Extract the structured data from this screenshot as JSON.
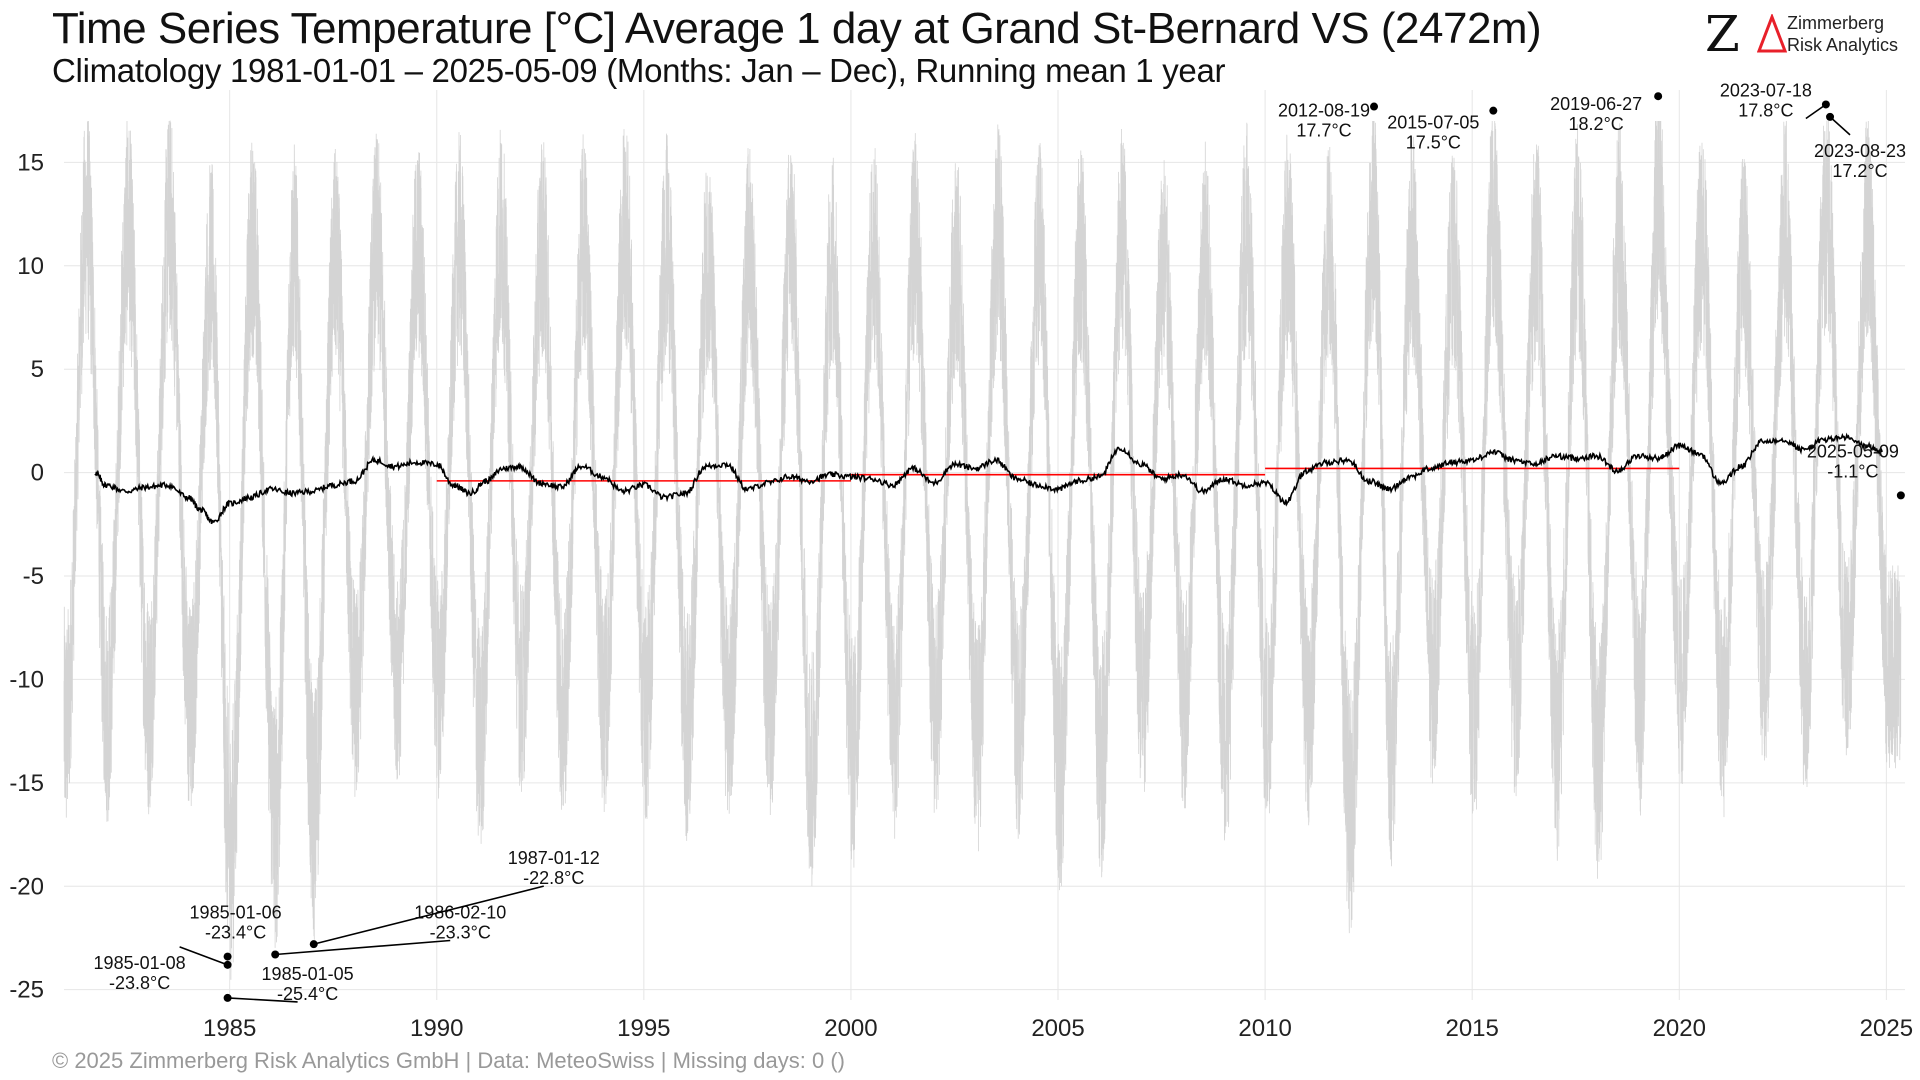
{
  "header": {
    "title": "Time Series Temperature [°C] Average 1 day at Grand St-Bernard  VS (2472m)",
    "subtitle": "Climatology 1981-01-01 – 2025-05-09 (Months: Jan – Dec), Running mean 1 year"
  },
  "logo": {
    "mark": "ZΔ",
    "line1": "Zimmerberg",
    "line2": "Risk Analytics",
    "accent_color": "#e8202a"
  },
  "footer": {
    "text": "©  2025 Zimmerberg Risk Analytics GmbH | Data: MeteoSwiss | Missing days: 0 ()"
  },
  "chart_data": {
    "type": "line",
    "title": "Time Series Temperature [°C] Average 1 day at Grand St-Bernard  VS (2472m)",
    "subtitle": "Climatology 1981-01-01 – 2025-05-09 (Months: Jan – Dec), Running mean 1 year",
    "xlabel": "",
    "ylabel": "",
    "xlim": [
      1981.0,
      2025.45
    ],
    "ylim": [
      -25.5,
      18.5
    ],
    "x_ticks": [
      1985,
      1990,
      1995,
      2000,
      2005,
      2010,
      2015,
      2020,
      2025
    ],
    "y_ticks": [
      15,
      10,
      5,
      0,
      -5,
      -10,
      -15,
      -20,
      -25
    ],
    "grid": true,
    "colors": {
      "daily": "#d4d4d4",
      "running_mean": "#000000",
      "decade_mean": "#ff0000",
      "grid": "#e6e6e6"
    },
    "series": [
      {
        "role": "daily",
        "seasonal_mean_c": -0.4,
        "seasonal_amplitude_c": 8.5,
        "summer_peaks": [
          [
            1981.55,
            17.0
          ],
          [
            1982.55,
            16.5
          ],
          [
            1983.55,
            17.0
          ],
          [
            1984.55,
            14.0
          ],
          [
            1985.55,
            15.5
          ],
          [
            1986.55,
            15.0
          ],
          [
            1987.55,
            14.5
          ],
          [
            1988.55,
            15.5
          ],
          [
            1989.55,
            15.0
          ],
          [
            1990.55,
            15.5
          ],
          [
            1991.55,
            16.0
          ],
          [
            1992.55,
            15.5
          ],
          [
            1993.55,
            15.5
          ],
          [
            1994.55,
            16.5
          ],
          [
            1995.55,
            15.5
          ],
          [
            1996.55,
            14.5
          ],
          [
            1997.55,
            15.0
          ],
          [
            1998.55,
            15.5
          ],
          [
            1999.55,
            14.5
          ],
          [
            2000.55,
            15.0
          ],
          [
            2001.55,
            15.5
          ],
          [
            2002.55,
            14.5
          ],
          [
            2003.55,
            16.0
          ],
          [
            2004.55,
            15.0
          ],
          [
            2005.55,
            15.0
          ],
          [
            2006.55,
            16.0
          ],
          [
            2007.55,
            14.5
          ],
          [
            2008.55,
            15.0
          ],
          [
            2009.55,
            16.0
          ],
          [
            2010.55,
            15.5
          ],
          [
            2011.55,
            15.5
          ],
          [
            2012.62,
            17.7
          ],
          [
            2013.55,
            15.5
          ],
          [
            2014.55,
            14.5
          ],
          [
            2015.51,
            17.5
          ],
          [
            2016.55,
            15.5
          ],
          [
            2017.55,
            16.0
          ],
          [
            2018.55,
            16.0
          ],
          [
            2019.49,
            18.2
          ],
          [
            2020.55,
            16.0
          ],
          [
            2021.55,
            14.5
          ],
          [
            2022.55,
            16.5
          ],
          [
            2023.55,
            17.8
          ],
          [
            2024.55,
            16.5
          ]
        ],
        "winter_troughs": [
          [
            1981.05,
            -17.0
          ],
          [
            1982.05,
            -16.0
          ],
          [
            1983.05,
            -15.5
          ],
          [
            1984.05,
            -16.0
          ],
          [
            1985.02,
            -25.4
          ],
          [
            1986.11,
            -23.3
          ],
          [
            1987.03,
            -22.8
          ],
          [
            1988.05,
            -15.0
          ],
          [
            1989.05,
            -14.0
          ],
          [
            1990.05,
            -14.5
          ],
          [
            1991.05,
            -18.0
          ],
          [
            1992.05,
            -14.5
          ],
          [
            1993.05,
            -16.0
          ],
          [
            1994.05,
            -15.5
          ],
          [
            1995.05,
            -16.0
          ],
          [
            1996.05,
            -17.0
          ],
          [
            1997.05,
            -16.5
          ],
          [
            1998.05,
            -16.0
          ],
          [
            1999.05,
            -20.0
          ],
          [
            2000.05,
            -19.0
          ],
          [
            2001.05,
            -17.0
          ],
          [
            2002.05,
            -16.0
          ],
          [
            2003.05,
            -18.0
          ],
          [
            2004.05,
            -17.0
          ],
          [
            2005.05,
            -20.0
          ],
          [
            2006.05,
            -19.0
          ],
          [
            2007.05,
            -15.0
          ],
          [
            2008.05,
            -15.5
          ],
          [
            2009.05,
            -17.5
          ],
          [
            2010.05,
            -16.5
          ],
          [
            2011.05,
            -16.0
          ],
          [
            2012.05,
            -22.5
          ],
          [
            2013.05,
            -18.5
          ],
          [
            2014.05,
            -14.0
          ],
          [
            2015.05,
            -16.5
          ],
          [
            2016.05,
            -14.5
          ],
          [
            2017.05,
            -18.0
          ],
          [
            2018.05,
            -19.5
          ],
          [
            2019.05,
            -15.5
          ],
          [
            2020.05,
            -14.0
          ],
          [
            2021.05,
            -16.0
          ],
          [
            2022.05,
            -13.5
          ],
          [
            2023.05,
            -15.0
          ],
          [
            2024.05,
            -13.0
          ],
          [
            2025.05,
            -13.0
          ]
        ]
      },
      {
        "role": "running_mean",
        "x": [
          1981.75,
          1982.0,
          1982.5,
          1983.0,
          1983.5,
          1984.0,
          1984.3,
          1984.6,
          1985.0,
          1985.5,
          1986.0,
          1986.5,
          1987.0,
          1987.5,
          1988.0,
          1988.5,
          1989.0,
          1989.5,
          1990.0,
          1990.4,
          1990.8,
          1991.2,
          1991.6,
          1992.0,
          1992.5,
          1993.0,
          1993.5,
          1994.0,
          1994.5,
          1995.0,
          1995.5,
          1996.0,
          1996.5,
          1997.0,
          1997.5,
          1998.0,
          1998.5,
          1999.0,
          1999.5,
          2000.0,
          2000.5,
          2001.0,
          2001.5,
          2002.0,
          2002.5,
          2003.0,
          2003.5,
          2004.0,
          2004.5,
          2005.0,
          2005.5,
          2006.0,
          2006.5,
          2007.0,
          2007.5,
          2008.0,
          2008.5,
          2009.0,
          2009.5,
          2010.0,
          2010.5,
          2011.0,
          2011.5,
          2012.0,
          2012.5,
          2013.0,
          2013.5,
          2014.0,
          2014.5,
          2015.0,
          2015.5,
          2016.0,
          2016.5,
          2017.0,
          2017.5,
          2018.0,
          2018.5,
          2019.0,
          2019.5,
          2020.0,
          2020.5,
          2021.0,
          2021.5,
          2022.0,
          2022.5,
          2023.0,
          2023.5,
          2024.0,
          2024.5,
          2024.9
        ],
        "values": [
          0.0,
          -0.6,
          -0.9,
          -0.7,
          -0.6,
          -1.2,
          -1.8,
          -2.4,
          -1.5,
          -1.2,
          -0.8,
          -1.0,
          -0.9,
          -0.6,
          -0.4,
          0.6,
          0.3,
          0.5,
          0.4,
          -0.6,
          -1.0,
          -0.4,
          0.2,
          0.3,
          -0.5,
          -0.7,
          0.3,
          -0.2,
          -0.9,
          -0.6,
          -1.2,
          -1.0,
          0.3,
          0.4,
          -0.8,
          -0.5,
          -0.2,
          -0.4,
          -0.1,
          -0.2,
          -0.3,
          -0.6,
          0.2,
          -0.5,
          0.4,
          0.2,
          0.6,
          -0.3,
          -0.6,
          -0.8,
          -0.4,
          -0.2,
          1.2,
          0.4,
          -0.3,
          -0.1,
          -0.9,
          -0.3,
          -0.6,
          -0.5,
          -1.4,
          0.1,
          0.5,
          0.6,
          -0.4,
          -0.8,
          -0.2,
          0.2,
          0.5,
          0.6,
          1.0,
          0.6,
          0.4,
          0.8,
          0.7,
          0.8,
          0.1,
          0.8,
          0.7,
          1.3,
          0.9,
          -0.5,
          0.3,
          1.5,
          1.6,
          1.1,
          1.6,
          1.7,
          1.3,
          1.0
        ]
      },
      {
        "role": "decade_mean",
        "segments": [
          {
            "x": [
              1990,
              2000
            ],
            "value": -0.4
          },
          {
            "x": [
              2000,
              2010
            ],
            "value": -0.1
          },
          {
            "x": [
              2010,
              2020
            ],
            "value": 0.2
          }
        ]
      }
    ],
    "final_point": {
      "x": 2025.35,
      "value": -1.1,
      "label": "2025-05-09",
      "value_label": "-1.1°C"
    },
    "annotations": [
      {
        "date": "2012-08-19",
        "value_label": "17.7°C",
        "x": 2012.63,
        "value": 17.7,
        "label_pos": "left-below"
      },
      {
        "date": "2015-07-05",
        "value_label": "17.5°C",
        "x": 2015.51,
        "value": 17.5,
        "label_pos": "left-below"
      },
      {
        "date": "2019-06-27",
        "value_label": "18.2°C",
        "x": 2019.49,
        "value": 18.2,
        "label_pos": "left-below"
      },
      {
        "date": "2023-07-18",
        "value_label": "17.8°C",
        "x": 2023.54,
        "value": 17.8,
        "label_pos": "left-leader"
      },
      {
        "date": "2023-08-23",
        "value_label": "17.2°C",
        "x": 2023.64,
        "value": 17.2,
        "label_pos": "below-leader"
      },
      {
        "date": "1985-01-06",
        "value_label": "-23.4°C",
        "x": 1984.95,
        "value": -23.4,
        "label_pos": "above"
      },
      {
        "date": "1985-01-08",
        "value_label": "-23.8°C",
        "x": 1984.95,
        "value": -23.8,
        "label_pos": "left-leader"
      },
      {
        "date": "1985-01-05",
        "value_label": "-25.4°C",
        "x": 1984.95,
        "value": -25.4,
        "label_pos": "right-leader"
      },
      {
        "date": "1986-02-10",
        "value_label": "-23.3°C",
        "x": 1986.1,
        "value": -23.3,
        "label_pos": "right-leader"
      },
      {
        "date": "1987-01-12",
        "value_label": "-22.8°C",
        "x": 1987.03,
        "value": -22.8,
        "label_pos": "upper-right-leader"
      }
    ]
  }
}
